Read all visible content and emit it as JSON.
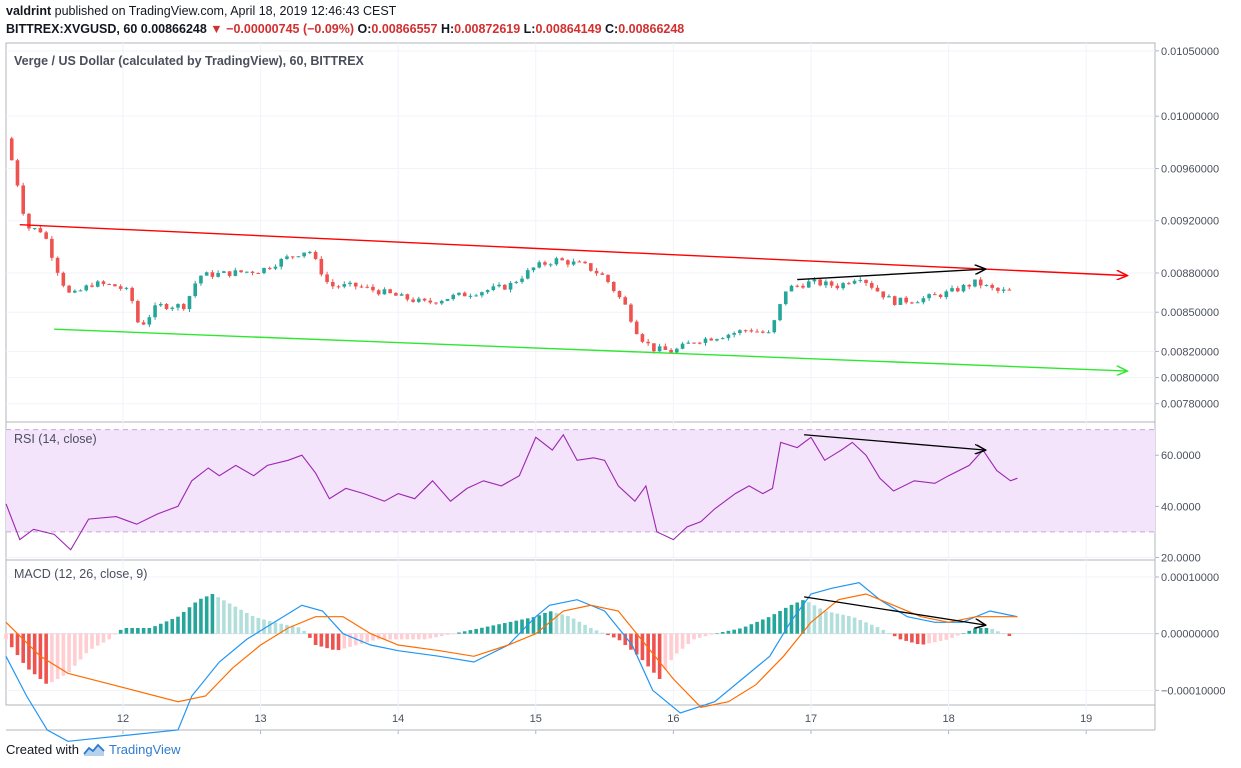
{
  "header": {
    "author": "valdrint",
    "published_text": "published on TradingView.com, April 18, 2019 12:46:43 CEST",
    "symbol": "BITTREX:XVGUSD, 60",
    "last": "0.00866248",
    "change": "▼ −0.00000745 (−0.09%)",
    "o_label": "O:",
    "o_value": "0.00866557",
    "h_label": "H:",
    "h_value": "0.00872619",
    "l_label": "L:",
    "l_value": "0.00864149",
    "c_label": "C:",
    "c_value": "0.00866248"
  },
  "footer": {
    "created": "Created with",
    "brand": "TradingView"
  },
  "colors": {
    "up": "#26a69a",
    "down": "#ef5350",
    "resistance": "#ff0000",
    "support": "#2ee82e",
    "rsi": "#9c27b0",
    "macd": "#2196f3",
    "signal": "#ff6d00"
  },
  "chart_data": [
    {
      "type": "candlestick",
      "title": "Verge / US Dollar (calculated by TradingView), 60, BITTREX",
      "x_ticks": [
        "12",
        "13",
        "14",
        "15",
        "16",
        "17",
        "18",
        "19"
      ],
      "y_ticks": [
        "0.01050000",
        "0.01000000",
        "0.00960000",
        "0.00920000",
        "0.00880000",
        "0.00850000",
        "0.00820000",
        "0.00800000",
        "0.00780000"
      ],
      "ylim": [
        0.00766,
        0.01056
      ],
      "xlim": [
        11.15,
        19.5
      ],
      "price_path": [
        [
          11.15,
          0.00983
        ],
        [
          11.22,
          0.00955
        ],
        [
          11.3,
          0.00915
        ],
        [
          11.42,
          0.00912
        ],
        [
          11.55,
          0.00875
        ],
        [
          11.62,
          0.00862
        ],
        [
          11.78,
          0.00872
        ],
        [
          11.95,
          0.0087
        ],
        [
          12.05,
          0.00865
        ],
        [
          12.12,
          0.00838
        ],
        [
          12.25,
          0.00855
        ],
        [
          12.45,
          0.00855
        ],
        [
          12.55,
          0.00878
        ],
        [
          12.78,
          0.0088
        ],
        [
          13.0,
          0.00882
        ],
        [
          13.2,
          0.00892
        ],
        [
          13.35,
          0.00898
        ],
        [
          13.5,
          0.0087
        ],
        [
          13.7,
          0.0087
        ],
        [
          13.9,
          0.00865
        ],
        [
          14.0,
          0.00862
        ],
        [
          14.2,
          0.00857
        ],
        [
          14.4,
          0.00862
        ],
        [
          14.6,
          0.00866
        ],
        [
          14.8,
          0.0087
        ],
        [
          15.0,
          0.00885
        ],
        [
          15.15,
          0.0089
        ],
        [
          15.35,
          0.00886
        ],
        [
          15.5,
          0.00877
        ],
        [
          15.65,
          0.00855
        ],
        [
          15.75,
          0.00832
        ],
        [
          15.85,
          0.00822
        ],
        [
          16.0,
          0.0082
        ],
        [
          16.15,
          0.00828
        ],
        [
          16.35,
          0.00832
        ],
        [
          16.55,
          0.00837
        ],
        [
          16.7,
          0.00833
        ],
        [
          16.82,
          0.00868
        ],
        [
          17.0,
          0.00873
        ],
        [
          17.2,
          0.0087
        ],
        [
          17.35,
          0.00878
        ],
        [
          17.5,
          0.00865
        ],
        [
          17.6,
          0.00858
        ],
        [
          17.8,
          0.0086
        ],
        [
          18.0,
          0.00865
        ],
        [
          18.2,
          0.00873
        ],
        [
          18.35,
          0.00866
        ],
        [
          18.48,
          0.00866
        ]
      ],
      "trendlines": [
        {
          "kind": "resistance",
          "from": [
            11.25,
            0.00917
          ],
          "to": [
            19.3,
            0.00878
          ]
        },
        {
          "kind": "support",
          "from": [
            11.5,
            0.00837
          ],
          "to": [
            19.3,
            0.00805
          ]
        },
        {
          "kind": "arrow",
          "from": [
            16.9,
            0.00875
          ],
          "to": [
            18.27,
            0.00883
          ]
        }
      ]
    },
    {
      "type": "line",
      "title": "RSI (14, close)",
      "y_ticks": [
        "60.0000",
        "40.0000",
        "20.0000"
      ],
      "ylim": [
        19,
        73
      ],
      "band": [
        30,
        70
      ],
      "series": [
        {
          "values": [
            [
              11.15,
              41
            ],
            [
              11.25,
              27
            ],
            [
              11.35,
              31
            ],
            [
              11.5,
              29
            ],
            [
              11.62,
              23
            ],
            [
              11.75,
              35
            ],
            [
              11.95,
              36
            ],
            [
              12.1,
              33
            ],
            [
              12.25,
              37
            ],
            [
              12.4,
              40
            ],
            [
              12.5,
              50
            ],
            [
              12.62,
              55
            ],
            [
              12.7,
              52
            ],
            [
              12.82,
              56
            ],
            [
              12.95,
              52
            ],
            [
              13.05,
              56
            ],
            [
              13.2,
              58
            ],
            [
              13.3,
              60
            ],
            [
              13.4,
              53
            ],
            [
              13.5,
              43
            ],
            [
              13.62,
              47
            ],
            [
              13.75,
              45
            ],
            [
              13.9,
              42
            ],
            [
              14.0,
              45
            ],
            [
              14.12,
              43
            ],
            [
              14.25,
              50
            ],
            [
              14.38,
              42
            ],
            [
              14.5,
              47
            ],
            [
              14.62,
              50
            ],
            [
              14.75,
              48
            ],
            [
              14.88,
              52
            ],
            [
              15.0,
              67
            ],
            [
              15.12,
              62
            ],
            [
              15.2,
              68
            ],
            [
              15.3,
              58
            ],
            [
              15.42,
              59
            ],
            [
              15.5,
              58
            ],
            [
              15.6,
              48
            ],
            [
              15.72,
              42
            ],
            [
              15.8,
              48
            ],
            [
              15.88,
              30
            ],
            [
              16.0,
              27
            ],
            [
              16.1,
              32
            ],
            [
              16.2,
              34
            ],
            [
              16.3,
              39
            ],
            [
              16.45,
              45
            ],
            [
              16.55,
              48
            ],
            [
              16.65,
              45
            ],
            [
              16.72,
              47
            ],
            [
              16.78,
              65
            ],
            [
              16.9,
              63
            ],
            [
              17.0,
              67
            ],
            [
              17.1,
              58
            ],
            [
              17.22,
              62
            ],
            [
              17.3,
              65
            ],
            [
              17.4,
              60
            ],
            [
              17.5,
              51
            ],
            [
              17.6,
              46
            ],
            [
              17.75,
              50
            ],
            [
              17.9,
              49
            ],
            [
              18.0,
              52
            ],
            [
              18.15,
              56
            ],
            [
              18.25,
              62
            ],
            [
              18.35,
              54
            ],
            [
              18.45,
              50
            ],
            [
              18.5,
              51
            ]
          ]
        }
      ],
      "trendlines": [
        {
          "kind": "arrow",
          "from": [
            16.95,
            68
          ],
          "to": [
            18.27,
            62
          ]
        }
      ]
    },
    {
      "type": "bar+line",
      "title": "MACD (12, 26, close, 9)",
      "y_ticks": [
        "0.00010000",
        "0.00000000",
        "−0.00010000"
      ],
      "ylim": [
        -0.00017,
        0.00013
      ],
      "histogram": [
        [
          11.15,
          -1e-05
        ],
        [
          11.3,
          -6e-05
        ],
        [
          11.45,
          -9e-05
        ],
        [
          11.6,
          -7e-05
        ],
        [
          11.75,
          -3e-05
        ],
        [
          11.9,
          -1e-05
        ],
        [
          12.0,
          1e-05
        ],
        [
          12.2,
          1e-05
        ],
        [
          12.4,
          3e-05
        ],
        [
          12.55,
          6e-05
        ],
        [
          12.65,
          7e-05
        ],
        [
          12.8,
          5e-05
        ],
        [
          12.95,
          3e-05
        ],
        [
          13.1,
          2e-05
        ],
        [
          13.3,
          1e-05
        ],
        [
          13.4,
          -2e-05
        ],
        [
          13.55,
          -3e-05
        ],
        [
          13.7,
          -2e-05
        ],
        [
          13.85,
          -1e-05
        ],
        [
          14.0,
          -1e-05
        ],
        [
          14.2,
          -1e-05
        ],
        [
          14.4,
          0.0
        ],
        [
          14.6,
          1e-05
        ],
        [
          14.8,
          2e-05
        ],
        [
          15.0,
          3e-05
        ],
        [
          15.1,
          4e-05
        ],
        [
          15.25,
          3e-05
        ],
        [
          15.4,
          1e-05
        ],
        [
          15.6,
          -1e-05
        ],
        [
          15.75,
          -4e-05
        ],
        [
          15.9,
          -8e-05
        ],
        [
          16.0,
          -4e-05
        ],
        [
          16.15,
          -1e-05
        ],
        [
          16.3,
          0.0
        ],
        [
          16.5,
          1e-05
        ],
        [
          16.7,
          3e-05
        ],
        [
          16.85,
          5e-05
        ],
        [
          16.95,
          6e-05
        ],
        [
          17.1,
          4e-05
        ],
        [
          17.3,
          3e-05
        ],
        [
          17.5,
          1e-05
        ],
        [
          17.65,
          -1e-05
        ],
        [
          17.8,
          -2e-05
        ],
        [
          18.0,
          -1e-05
        ],
        [
          18.2,
          1e-05
        ],
        [
          18.3,
          1e-05
        ],
        [
          18.45,
          -5e-06
        ]
      ],
      "series": [
        {
          "values": [
            [
              11.15,
              -4e-05
            ],
            [
              11.3,
              -0.00011
            ],
            [
              11.45,
              -0.00017
            ],
            [
              11.6,
              -0.00019
            ],
            [
              12.4,
              -0.00017
            ],
            [
              12.5,
              -0.00011
            ],
            [
              12.7,
              -5e-05
            ],
            [
              12.9,
              -1e-05
            ],
            [
              13.1,
              2e-05
            ],
            [
              13.3,
              5e-05
            ],
            [
              13.45,
              4e-05
            ],
            [
              13.6,
              0.0
            ],
            [
              13.8,
              -2e-05
            ],
            [
              14.0,
              -3e-05
            ],
            [
              14.3,
              -4e-05
            ],
            [
              14.55,
              -5e-05
            ],
            [
              14.8,
              -2e-05
            ],
            [
              15.0,
              3e-05
            ],
            [
              15.1,
              5e-05
            ],
            [
              15.3,
              6e-05
            ],
            [
              15.5,
              4e-05
            ],
            [
              15.7,
              -2e-05
            ],
            [
              15.85,
              -0.0001
            ],
            [
              16.05,
              -0.00014
            ],
            [
              16.3,
              -0.00012
            ],
            [
              16.5,
              -8e-05
            ],
            [
              16.7,
              -4e-05
            ],
            [
              16.85,
              2e-05
            ],
            [
              17.0,
              7e-05
            ],
            [
              17.15,
              8e-05
            ],
            [
              17.35,
              9e-05
            ],
            [
              17.5,
              6e-05
            ],
            [
              17.7,
              3e-05
            ],
            [
              17.9,
              2e-05
            ],
            [
              18.1,
              2e-05
            ],
            [
              18.3,
              4e-05
            ],
            [
              18.5,
              3e-05
            ]
          ]
        },
        {
          "values": [
            [
              11.15,
              2e-05
            ],
            [
              11.4,
              -4e-05
            ],
            [
              11.6,
              -7e-05
            ],
            [
              12.4,
              -0.00012
            ],
            [
              12.6,
              -0.00011
            ],
            [
              12.8,
              -6e-05
            ],
            [
              13.0,
              -2e-05
            ],
            [
              13.2,
              1e-05
            ],
            [
              13.4,
              3e-05
            ],
            [
              13.6,
              3e-05
            ],
            [
              13.8,
              0.0
            ],
            [
              14.0,
              -2e-05
            ],
            [
              14.3,
              -3e-05
            ],
            [
              14.55,
              -4e-05
            ],
            [
              14.8,
              -2e-05
            ],
            [
              15.0,
              0.0
            ],
            [
              15.2,
              4e-05
            ],
            [
              15.4,
              5e-05
            ],
            [
              15.6,
              4e-05
            ],
            [
              15.8,
              -2e-05
            ],
            [
              16.0,
              -8e-05
            ],
            [
              16.2,
              -0.00013
            ],
            [
              16.4,
              -0.00012
            ],
            [
              16.6,
              -9e-05
            ],
            [
              16.8,
              -4e-05
            ],
            [
              17.0,
              2e-05
            ],
            [
              17.2,
              6e-05
            ],
            [
              17.4,
              7e-05
            ],
            [
              17.6,
              5e-05
            ],
            [
              17.8,
              3e-05
            ],
            [
              18.0,
              2e-05
            ],
            [
              18.2,
              3e-05
            ],
            [
              18.5,
              3e-05
            ]
          ]
        }
      ],
      "trendlines": [
        {
          "kind": "arrow",
          "from": [
            16.95,
            6.5e-05
          ],
          "to": [
            18.27,
            1.5e-05
          ]
        }
      ]
    }
  ]
}
